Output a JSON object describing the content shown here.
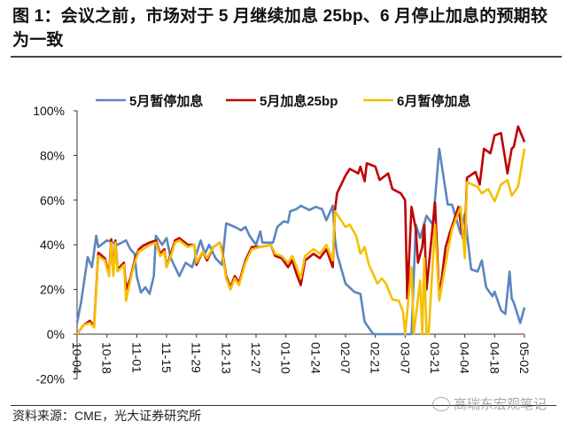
{
  "title": "图 1：会议之前，市场对于 5 月继续加息 25bp、6 月停止加息的预期较为一致",
  "source": "资料来源：CME，光大证券研究所",
  "watermark": "高瑞东宏观笔记",
  "chart_data": {
    "type": "line",
    "title": "",
    "xlabel": "",
    "ylabel": "",
    "ylim": [
      -20,
      100
    ],
    "yticks": [
      "-20%",
      "0%",
      "20%",
      "40%",
      "60%",
      "80%",
      "100%"
    ],
    "ytick_values": [
      -20,
      0,
      20,
      40,
      60,
      80,
      100
    ],
    "xticks": [
      "10-04",
      "10-18",
      "11-01",
      "11-15",
      "11-29",
      "12-13",
      "12-27",
      "01-10",
      "01-24",
      "02-07",
      "02-21",
      "03-07",
      "03-21",
      "04-04",
      "04-18",
      "05-02"
    ],
    "grid": false,
    "legend": "top",
    "series": [
      {
        "name": "5月暂停加息",
        "color": "#5b86c0",
        "points": [
          [
            "10-04",
            5
          ],
          [
            "10-06",
            15
          ],
          [
            "10-09",
            34.5
          ],
          [
            "10-11",
            30
          ],
          [
            "10-13",
            44
          ],
          [
            "10-14",
            39
          ],
          [
            "10-18",
            42
          ],
          [
            "10-21",
            41
          ],
          [
            "10-23",
            40
          ],
          [
            "10-27",
            42
          ],
          [
            "10-29",
            38
          ],
          [
            "10-31",
            36
          ],
          [
            "11-01",
            26
          ],
          [
            "11-03",
            18.6
          ],
          [
            "11-05",
            21
          ],
          [
            "11-07",
            18
          ],
          [
            "11-09",
            26
          ],
          [
            "11-10",
            44
          ],
          [
            "11-13",
            40
          ],
          [
            "11-15",
            43
          ],
          [
            "11-17",
            34
          ],
          [
            "11-21",
            26
          ],
          [
            "11-24",
            32
          ],
          [
            "11-27",
            30
          ],
          [
            "12-01",
            42
          ],
          [
            "12-03",
            36
          ],
          [
            "12-05",
            40
          ],
          [
            "12-08",
            34
          ],
          [
            "12-11",
            31
          ],
          [
            "12-13",
            49.6
          ],
          [
            "12-17",
            48
          ],
          [
            "12-20",
            46.5
          ],
          [
            "12-22",
            48
          ],
          [
            "12-24",
            44
          ],
          [
            "12-27",
            40
          ],
          [
            "12-29",
            46
          ],
          [
            "12-30",
            41
          ],
          [
            "01-04",
            41
          ],
          [
            "01-06",
            48
          ],
          [
            "01-09",
            50.5
          ],
          [
            "01-11",
            50
          ],
          [
            "01-12",
            55
          ],
          [
            "01-15",
            56
          ],
          [
            "01-17",
            57.5
          ],
          [
            "01-21",
            55.6
          ],
          [
            "01-24",
            57
          ],
          [
            "01-27",
            56
          ],
          [
            "01-29",
            51
          ],
          [
            "02-01",
            57.5
          ],
          [
            "02-02",
            43
          ],
          [
            "02-03",
            36
          ],
          [
            "02-07",
            22.6
          ],
          [
            "02-11",
            19
          ],
          [
            "02-14",
            18
          ],
          [
            "02-16",
            5.5
          ],
          [
            "02-20",
            0
          ],
          [
            "03-10",
            0
          ],
          [
            "03-12",
            49
          ],
          [
            "03-14",
            43
          ],
          [
            "03-17",
            53
          ],
          [
            "03-20",
            49
          ],
          [
            "03-23",
            83
          ],
          [
            "03-27",
            58
          ],
          [
            "03-29",
            58
          ],
          [
            "04-02",
            45
          ],
          [
            "04-04",
            54
          ],
          [
            "04-05",
            45
          ],
          [
            "04-07",
            29
          ],
          [
            "04-10",
            28
          ],
          [
            "04-12",
            33
          ],
          [
            "04-14",
            21
          ],
          [
            "04-17",
            17
          ],
          [
            "04-18",
            19
          ],
          [
            "04-21",
            10.7
          ],
          [
            "04-23",
            9
          ],
          [
            "04-25",
            28
          ],
          [
            "04-26",
            16
          ],
          [
            "04-27",
            14
          ],
          [
            "04-30",
            5
          ],
          [
            "05-02",
            12
          ]
        ]
      },
      {
        "name": "5月加息25bp",
        "color": "#c00000",
        "points": [
          [
            "10-04",
            0
          ],
          [
            "10-07",
            4
          ],
          [
            "10-10",
            6
          ],
          [
            "10-12",
            3.5
          ],
          [
            "10-14",
            36.5
          ],
          [
            "10-17",
            34
          ],
          [
            "10-19",
            27
          ],
          [
            "10-20",
            42.5
          ],
          [
            "10-21",
            27
          ],
          [
            "10-22",
            42
          ],
          [
            "10-23",
            29
          ],
          [
            "10-26",
            32
          ],
          [
            "10-27",
            20
          ],
          [
            "10-29",
            25
          ],
          [
            "10-31",
            33
          ],
          [
            "11-02",
            38
          ],
          [
            "11-04",
            39.6
          ],
          [
            "11-07",
            41
          ],
          [
            "11-10",
            42
          ],
          [
            "11-12",
            36
          ],
          [
            "11-14",
            38
          ],
          [
            "11-15",
            30
          ],
          [
            "11-17",
            36
          ],
          [
            "11-19",
            42
          ],
          [
            "11-21",
            43
          ],
          [
            "11-25",
            40
          ],
          [
            "11-28",
            40
          ],
          [
            "11-29",
            31
          ],
          [
            "12-02",
            37
          ],
          [
            "12-04",
            33
          ],
          [
            "12-07",
            39
          ],
          [
            "12-10",
            41
          ],
          [
            "12-11",
            38
          ],
          [
            "12-13",
            26
          ],
          [
            "12-15",
            21
          ],
          [
            "12-17",
            26
          ],
          [
            "12-19",
            23
          ],
          [
            "12-22",
            33
          ],
          [
            "12-25",
            39
          ],
          [
            "12-29",
            39
          ],
          [
            "01-03",
            40
          ],
          [
            "01-05",
            35
          ],
          [
            "01-08",
            34
          ],
          [
            "01-11",
            30
          ],
          [
            "01-13",
            33
          ],
          [
            "01-15",
            27
          ],
          [
            "01-17",
            22
          ],
          [
            "01-19",
            33
          ],
          [
            "01-23",
            36
          ],
          [
            "01-26",
            34
          ],
          [
            "01-29",
            38
          ],
          [
            "02-01",
            30
          ],
          [
            "02-02",
            55
          ],
          [
            "02-03",
            63
          ],
          [
            "02-07",
            71
          ],
          [
            "02-09",
            74
          ],
          [
            "02-13",
            72
          ],
          [
            "02-14",
            75
          ],
          [
            "02-16",
            68.5
          ],
          [
            "02-17",
            76.5
          ],
          [
            "02-21",
            75
          ],
          [
            "02-23",
            69
          ],
          [
            "02-27",
            72
          ],
          [
            "03-01",
            65
          ],
          [
            "03-05",
            63
          ],
          [
            "03-07",
            60
          ],
          [
            "03-08",
            16
          ],
          [
            "03-10",
            57
          ],
          [
            "03-12",
            47
          ],
          [
            "03-13",
            32
          ],
          [
            "03-15",
            39
          ],
          [
            "03-16",
            49
          ],
          [
            "03-17",
            20
          ],
          [
            "03-21",
            59
          ],
          [
            "03-23",
            16
          ],
          [
            "03-26",
            39
          ],
          [
            "03-28",
            45.5
          ],
          [
            "04-01",
            57
          ],
          [
            "04-03",
            43
          ],
          [
            "04-04",
            43
          ],
          [
            "04-05",
            70
          ],
          [
            "04-09",
            72.6
          ],
          [
            "04-11",
            67
          ],
          [
            "04-13",
            83
          ],
          [
            "04-16",
            81
          ],
          [
            "04-18",
            89
          ],
          [
            "04-21",
            90
          ],
          [
            "04-24",
            72
          ],
          [
            "04-26",
            83
          ],
          [
            "04-27",
            84
          ],
          [
            "04-29",
            93
          ],
          [
            "05-02",
            86
          ]
        ]
      },
      {
        "name": "6月暂停加息",
        "color": "#f5c000",
        "points": [
          [
            "10-04",
            0
          ],
          [
            "10-07",
            4
          ],
          [
            "10-10",
            5
          ],
          [
            "10-12",
            3
          ],
          [
            "10-14",
            35
          ],
          [
            "10-17",
            33
          ],
          [
            "10-19",
            26
          ],
          [
            "10-20",
            41
          ],
          [
            "10-21",
            26
          ],
          [
            "10-22",
            41
          ],
          [
            "10-23",
            28
          ],
          [
            "10-26",
            31
          ],
          [
            "10-27",
            15
          ],
          [
            "10-29",
            24
          ],
          [
            "10-31",
            32
          ],
          [
            "11-02",
            37
          ],
          [
            "11-04",
            38
          ],
          [
            "11-07",
            40
          ],
          [
            "11-10",
            41
          ],
          [
            "11-12",
            35
          ],
          [
            "11-14",
            37
          ],
          [
            "11-15",
            30
          ],
          [
            "11-17",
            35
          ],
          [
            "11-19",
            41
          ],
          [
            "11-21",
            42
          ],
          [
            "11-25",
            39
          ],
          [
            "11-28",
            40
          ],
          [
            "11-29",
            32
          ],
          [
            "12-02",
            37
          ],
          [
            "12-04",
            34
          ],
          [
            "12-07",
            39
          ],
          [
            "12-10",
            41
          ],
          [
            "12-11",
            37
          ],
          [
            "12-13",
            25
          ],
          [
            "12-15",
            20
          ],
          [
            "12-17",
            25
          ],
          [
            "12-19",
            22
          ],
          [
            "12-22",
            32
          ],
          [
            "12-25",
            38
          ],
          [
            "12-29",
            39
          ],
          [
            "01-03",
            40
          ],
          [
            "01-05",
            36
          ],
          [
            "01-08",
            35
          ],
          [
            "01-11",
            32
          ],
          [
            "01-13",
            35
          ],
          [
            "01-15",
            30
          ],
          [
            "01-17",
            25
          ],
          [
            "01-19",
            35
          ],
          [
            "01-23",
            38
          ],
          [
            "01-26",
            36
          ],
          [
            "01-29",
            40
          ],
          [
            "02-01",
            33
          ],
          [
            "02-02",
            55
          ],
          [
            "02-07",
            48
          ],
          [
            "02-09",
            49
          ],
          [
            "02-12",
            44
          ],
          [
            "02-14",
            36
          ],
          [
            "02-16",
            39
          ],
          [
            "02-18",
            31
          ],
          [
            "02-22",
            22.6
          ],
          [
            "02-24",
            25
          ],
          [
            "02-26",
            22.6
          ],
          [
            "03-01",
            15.5
          ],
          [
            "03-04",
            15
          ],
          [
            "03-06",
            10
          ],
          [
            "03-07",
            0
          ],
          [
            "03-10",
            30
          ],
          [
            "03-11",
            0
          ],
          [
            "03-14",
            24
          ],
          [
            "03-15",
            0
          ],
          [
            "03-16",
            34
          ],
          [
            "03-17",
            0
          ],
          [
            "03-18",
            0
          ],
          [
            "03-21",
            49
          ],
          [
            "03-23",
            15
          ],
          [
            "03-27",
            37
          ],
          [
            "03-29",
            47
          ],
          [
            "04-02",
            57
          ],
          [
            "04-04",
            34
          ],
          [
            "04-05",
            68
          ],
          [
            "04-10",
            66
          ],
          [
            "04-12",
            63
          ],
          [
            "04-15",
            65
          ],
          [
            "04-18",
            59.5
          ],
          [
            "04-21",
            67
          ],
          [
            "04-24",
            69
          ],
          [
            "04-26",
            62
          ],
          [
            "04-29",
            66
          ],
          [
            "05-02",
            83
          ]
        ]
      }
    ]
  }
}
